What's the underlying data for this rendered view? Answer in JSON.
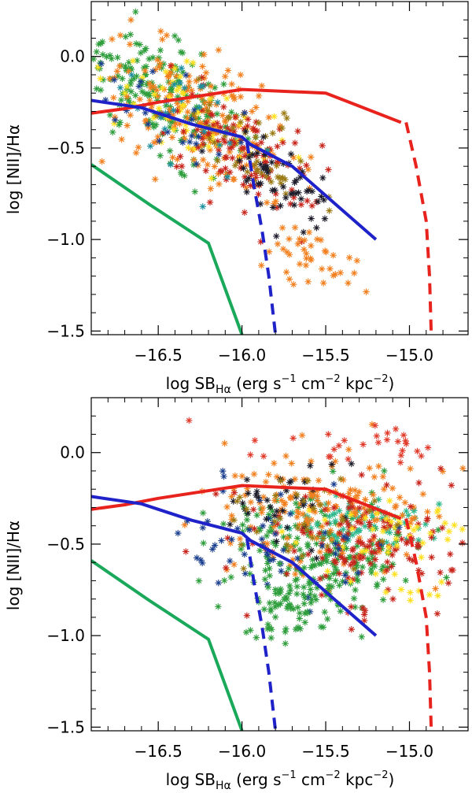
{
  "chart_data": [
    {
      "type": "scatter",
      "panel": "top",
      "xlabel": {
        "pre": "log SB",
        "sub": "Hα",
        "units": "(erg s",
        "exp1": "−1",
        "cm": "cm",
        "exp2": "−2",
        "kpc": "kpc",
        "exp3": "−2",
        "close": ")"
      },
      "ylabel": {
        "pre": "log [NII]/Hα"
      },
      "xlim": [
        -16.9,
        -14.65
      ],
      "ylim": [
        -1.52,
        0.3
      ],
      "xticks": [
        -16.5,
        -16.0,
        -15.5,
        -15.0
      ],
      "xtick_labels": [
        "−16.5",
        "−16.0",
        "−15.5",
        "−15.0"
      ],
      "yticks": [
        0.0,
        -0.5,
        -1.0,
        -1.5
      ],
      "ytick_labels": [
        "0.0",
        "−0.5",
        "−1.0",
        "−1.5"
      ],
      "lines": [
        {
          "name": "red-solid",
          "color": "#e8231e",
          "style": "solid",
          "x": [
            -16.9,
            -16.7,
            -16.5,
            -16.25,
            -16.0,
            -15.5,
            -15.05
          ],
          "y": [
            -0.31,
            -0.285,
            -0.25,
            -0.215,
            -0.18,
            -0.2,
            -0.36
          ]
        },
        {
          "name": "red-dashed",
          "color": "#e8231e",
          "style": "dashed",
          "x": [
            -15.02,
            -14.96,
            -14.9,
            -14.88,
            -14.87
          ],
          "y": [
            -0.36,
            -0.6,
            -0.9,
            -1.2,
            -1.52
          ]
        },
        {
          "name": "blue-solid",
          "color": "#1f22c9",
          "style": "solid",
          "x": [
            -16.9,
            -16.6,
            -16.3,
            -16.0,
            -15.95,
            -15.7,
            -15.45,
            -15.2
          ],
          "y": [
            -0.24,
            -0.28,
            -0.37,
            -0.44,
            -0.48,
            -0.6,
            -0.8,
            -1.0
          ]
        },
        {
          "name": "blue-dashed",
          "color": "#1f22c9",
          "style": "dashed",
          "x": [
            -15.97,
            -15.93,
            -15.88,
            -15.84,
            -15.8
          ],
          "y": [
            -0.47,
            -0.7,
            -0.95,
            -1.2,
            -1.52
          ]
        },
        {
          "name": "green-solid",
          "color": "#1aa85a",
          "style": "solid",
          "x": [
            -16.9,
            -16.55,
            -16.2,
            -16.0
          ],
          "y": [
            -0.59,
            -0.81,
            -1.02,
            -1.52
          ]
        }
      ],
      "scatter_groups": [
        {
          "color": "#2e9e3c",
          "cx": -16.5,
          "cy": -0.2,
          "sx": 0.25,
          "sy": 0.14,
          "n": 190,
          "slope": -0.45
        },
        {
          "color": "#f27f1d",
          "cx": -16.25,
          "cy": -0.35,
          "sx": 0.3,
          "sy": 0.17,
          "n": 190,
          "slope": -0.45
        },
        {
          "color": "#ffe01f",
          "cx": -16.3,
          "cy": -0.3,
          "sx": 0.25,
          "sy": 0.12,
          "n": 60,
          "slope": -0.45
        },
        {
          "color": "#c7251b",
          "cx": -16.0,
          "cy": -0.52,
          "sx": 0.22,
          "sy": 0.15,
          "n": 110,
          "slope": -0.45
        },
        {
          "color": "#9b7a14",
          "cx": -15.95,
          "cy": -0.5,
          "sx": 0.22,
          "sy": 0.14,
          "n": 50,
          "slope": -0.45
        },
        {
          "color": "#1c1c2a",
          "cx": -15.8,
          "cy": -0.68,
          "sx": 0.17,
          "sy": 0.1,
          "n": 55,
          "slope": -0.45
        },
        {
          "color": "#1b3f8f",
          "cx": -16.4,
          "cy": -0.3,
          "sx": 0.3,
          "sy": 0.14,
          "n": 30,
          "slope": -0.45
        },
        {
          "color": "#1f8fa0",
          "cx": -16.3,
          "cy": -0.32,
          "sx": 0.25,
          "sy": 0.14,
          "n": 25,
          "slope": -0.45
        },
        {
          "color": "#f27f1d",
          "cx": -15.55,
          "cy": -1.1,
          "sx": 0.15,
          "sy": 0.1,
          "n": 40,
          "slope": -0.3
        }
      ]
    },
    {
      "type": "scatter",
      "panel": "bottom",
      "xlabel": {
        "pre": "log SB",
        "sub": "Hα",
        "units": "(erg s",
        "exp1": "−1",
        "cm": "cm",
        "exp2": "−2",
        "kpc": "kpc",
        "exp3": "−2",
        "close": ")"
      },
      "ylabel": {
        "pre": "log [NII]/Hα"
      },
      "xlim": [
        -16.9,
        -14.65
      ],
      "ylim": [
        -1.52,
        0.3
      ],
      "xticks": [
        -16.5,
        -16.0,
        -15.5,
        -15.0
      ],
      "xtick_labels": [
        "−16.5",
        "−16.0",
        "−15.5",
        "−15.0"
      ],
      "yticks": [
        0.0,
        -0.5,
        -1.0,
        -1.5
      ],
      "ytick_labels": [
        "0.0",
        "−0.5",
        "−1.0",
        "−1.5"
      ],
      "lines": [
        {
          "name": "red-solid",
          "color": "#e8231e",
          "style": "solid",
          "x": [
            -16.9,
            -16.7,
            -16.5,
            -16.25,
            -16.0,
            -15.5,
            -15.05
          ],
          "y": [
            -0.31,
            -0.285,
            -0.25,
            -0.215,
            -0.18,
            -0.2,
            -0.36
          ]
        },
        {
          "name": "red-dashed",
          "color": "#e8231e",
          "style": "dashed",
          "x": [
            -15.02,
            -14.96,
            -14.9,
            -14.88,
            -14.87
          ],
          "y": [
            -0.36,
            -0.6,
            -0.9,
            -1.2,
            -1.52
          ]
        },
        {
          "name": "blue-solid",
          "color": "#1f22c9",
          "style": "solid",
          "x": [
            -16.9,
            -16.6,
            -16.3,
            -16.0,
            -15.95,
            -15.7,
            -15.45,
            -15.2
          ],
          "y": [
            -0.24,
            -0.28,
            -0.37,
            -0.44,
            -0.48,
            -0.6,
            -0.8,
            -1.0
          ]
        },
        {
          "name": "blue-dashed",
          "color": "#1f22c9",
          "style": "dashed",
          "x": [
            -15.97,
            -15.93,
            -15.88,
            -15.84,
            -15.8
          ],
          "y": [
            -0.47,
            -0.7,
            -0.95,
            -1.2,
            -1.52
          ]
        },
        {
          "name": "green-solid",
          "color": "#1aa85a",
          "style": "solid",
          "x": [
            -16.9,
            -16.55,
            -16.2,
            -16.0
          ],
          "y": [
            -0.59,
            -0.81,
            -1.02,
            -1.52
          ]
        }
      ],
      "scatter_groups": [
        {
          "color": "#2e9e3c",
          "cx": -15.55,
          "cy": -0.55,
          "sx": 0.28,
          "sy": 0.18,
          "n": 200,
          "slope": 0.0
        },
        {
          "color": "#2fb88c",
          "cx": -15.3,
          "cy": -0.38,
          "sx": 0.25,
          "sy": 0.07,
          "n": 80,
          "slope": 0.0
        },
        {
          "color": "#f27f1d",
          "cx": -15.5,
          "cy": -0.32,
          "sx": 0.3,
          "sy": 0.15,
          "n": 170,
          "slope": 0.0
        },
        {
          "color": "#c7251b",
          "cx": -15.25,
          "cy": -0.52,
          "sx": 0.32,
          "sy": 0.17,
          "n": 150,
          "slope": 0.0
        },
        {
          "color": "#ffe01f",
          "cx": -15.0,
          "cy": -0.5,
          "sx": 0.3,
          "sy": 0.18,
          "n": 55,
          "slope": 0.0
        },
        {
          "color": "#1b3f8f",
          "cx": -15.9,
          "cy": -0.45,
          "sx": 0.3,
          "sy": 0.15,
          "n": 55,
          "slope": 0.0
        },
        {
          "color": "#1c1c2a",
          "cx": -15.8,
          "cy": -0.3,
          "sx": 0.2,
          "sy": 0.12,
          "n": 35,
          "slope": 0.0
        },
        {
          "color": "#9b7a14",
          "cx": -15.6,
          "cy": -0.4,
          "sx": 0.25,
          "sy": 0.14,
          "n": 35,
          "slope": 0.0
        },
        {
          "color": "#e03a2a",
          "cx": -15.4,
          "cy": 0.05,
          "sx": 0.3,
          "sy": 0.1,
          "n": 30,
          "slope": 0.0
        },
        {
          "color": "#2e9e3c",
          "cx": -15.75,
          "cy": -0.82,
          "sx": 0.18,
          "sy": 0.1,
          "n": 60,
          "slope": 0.0
        }
      ]
    }
  ]
}
